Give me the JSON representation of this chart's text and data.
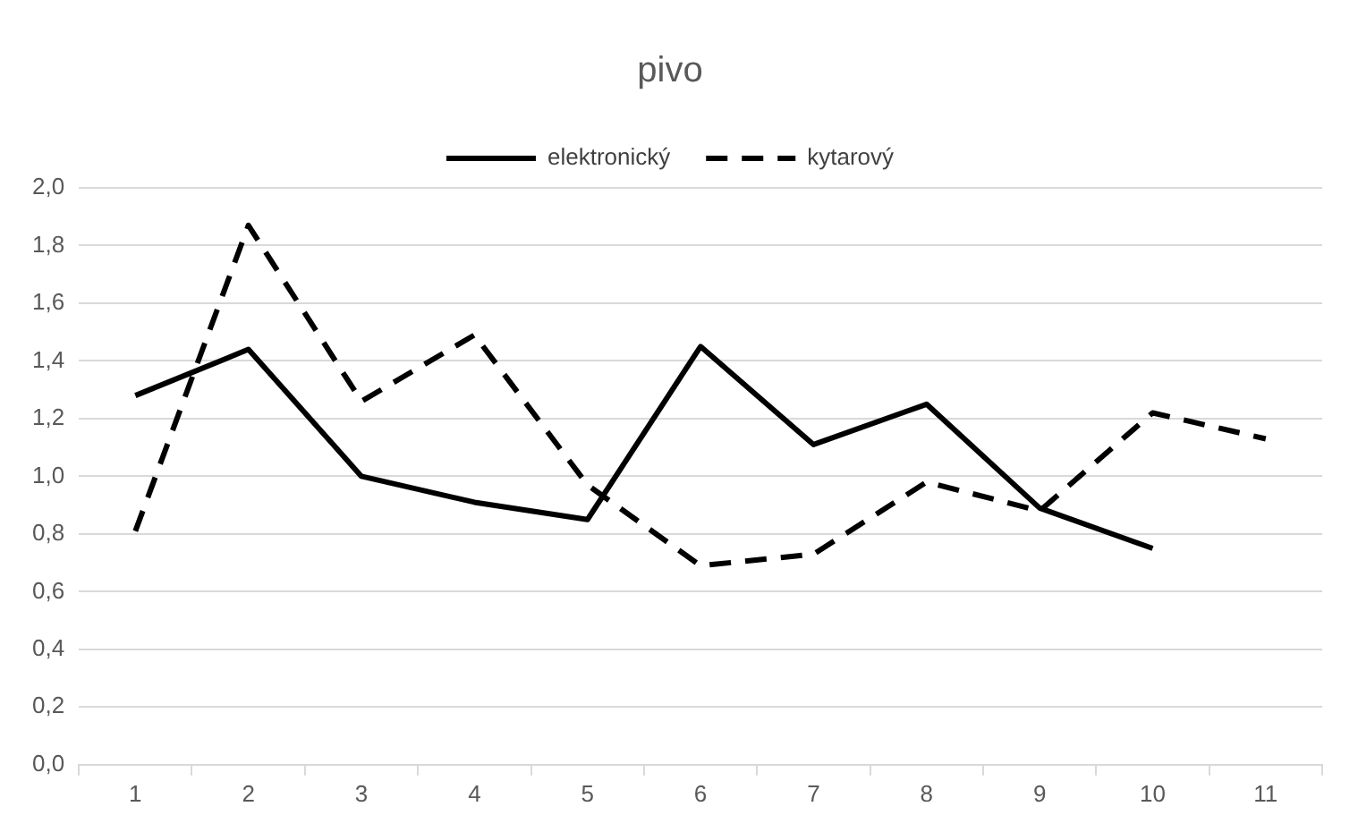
{
  "chart_data": {
    "type": "line",
    "title": "pivo",
    "categories": [
      "1",
      "2",
      "3",
      "4",
      "5",
      "6",
      "7",
      "8",
      "9",
      "10",
      "11"
    ],
    "series": [
      {
        "name": "elektronický",
        "color": "#000000",
        "line_style": "solid",
        "values": [
          1.28,
          1.44,
          1.0,
          0.91,
          0.85,
          1.45,
          1.11,
          1.25,
          0.89,
          0.75,
          null
        ]
      },
      {
        "name": "kytarový",
        "color": "#000000",
        "line_style": "dashed",
        "values": [
          0.81,
          1.87,
          1.26,
          1.49,
          0.97,
          0.69,
          0.73,
          0.98,
          0.88,
          1.22,
          1.13
        ]
      }
    ],
    "ylim": [
      0,
      2
    ],
    "yticks": [
      {
        "value": 0,
        "label": "0,0"
      },
      {
        "value": 0.2,
        "label": "0,2"
      },
      {
        "value": 0.4,
        "label": "0,4"
      },
      {
        "value": 0.6,
        "label": "0,6"
      },
      {
        "value": 0.8,
        "label": "0,8"
      },
      {
        "value": 1,
        "label": "1,0"
      },
      {
        "value": 1.2,
        "label": "1,2"
      },
      {
        "value": 1.4,
        "label": "1,4"
      },
      {
        "value": 1.6,
        "label": "1,6"
      },
      {
        "value": 1.8,
        "label": "1,8"
      },
      {
        "value": 2,
        "label": "2,0"
      }
    ],
    "grid": "y",
    "legend": "top",
    "marker": "none"
  }
}
